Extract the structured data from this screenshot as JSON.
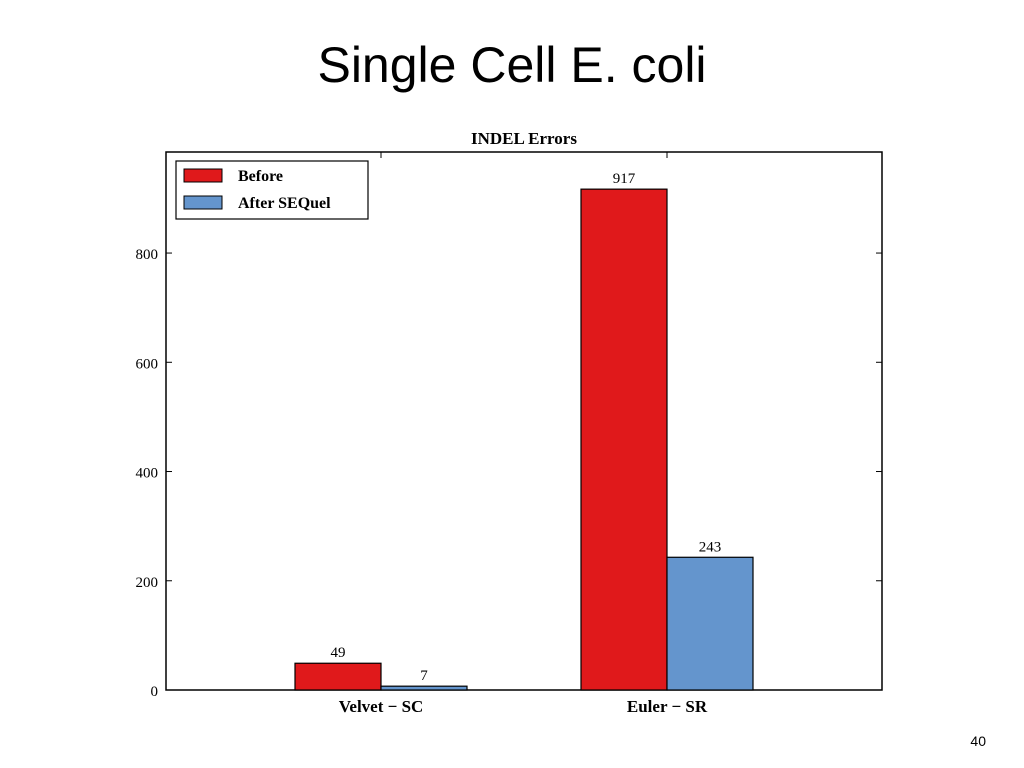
{
  "slide": {
    "title": "Single Cell E. coli",
    "page_number": "40"
  },
  "chart_data": {
    "type": "bar",
    "title": "INDEL Errors",
    "categories": [
      "Velvet − SC",
      "Euler − SR"
    ],
    "series": [
      {
        "name": "Before",
        "values": [
          49,
          917
        ],
        "color": "#e0191b"
      },
      {
        "name": "After SEQuel",
        "values": [
          7,
          243
        ],
        "color": "#6495cd"
      }
    ],
    "yticks": [
      0,
      200,
      400,
      600,
      800
    ],
    "ylim": [
      0,
      985
    ],
    "xlabel": "",
    "ylabel": "",
    "grid": false,
    "legend_position": "top-left"
  }
}
